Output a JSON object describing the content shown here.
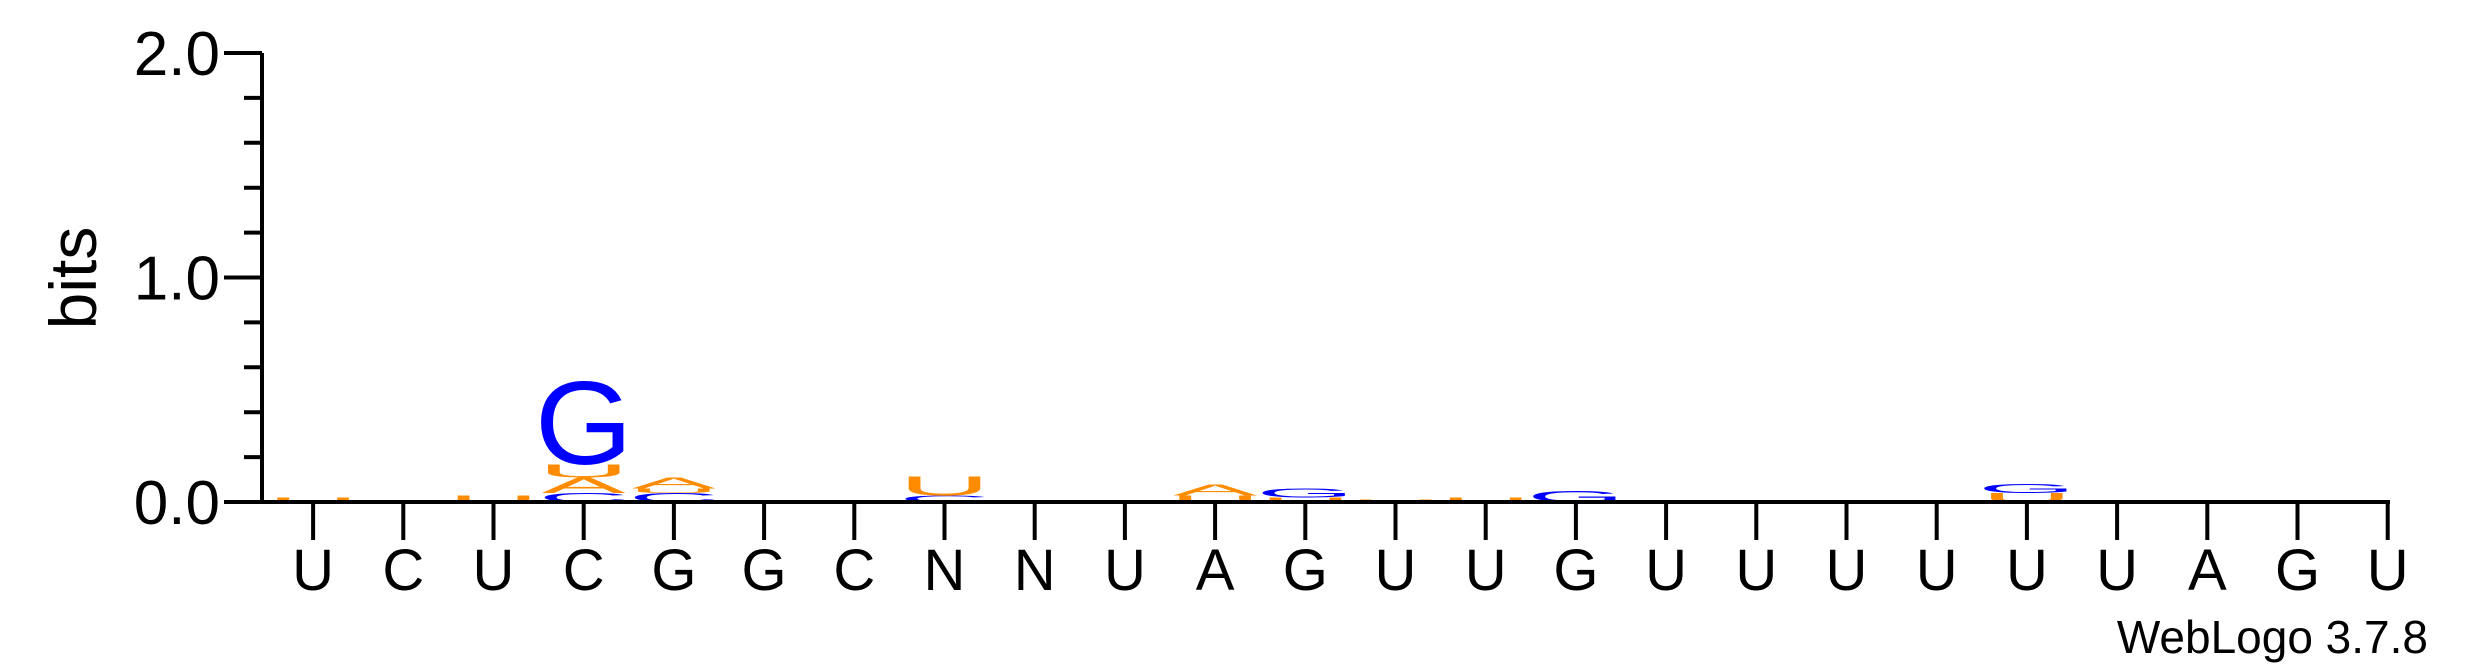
{
  "chart_data": {
    "type": "sequence-logo",
    "ylabel": "bits",
    "ylim": [
      0,
      2.0
    ],
    "yticks": [
      "0.0",
      "1.0",
      "2.0"
    ],
    "credit": "WebLogo 3.7.8",
    "colors": {
      "A": "#ff8c00",
      "U": "#ff8c00",
      "G": "#0000ff",
      "C": "#0000ff",
      "N": "#000000"
    },
    "x": [
      "U",
      "C",
      "U",
      "C",
      "G",
      "G",
      "C",
      "N",
      "N",
      "U",
      "A",
      "G",
      "U",
      "U",
      "G",
      "U",
      "U",
      "U",
      "U",
      "U",
      "U",
      "A",
      "G",
      "U"
    ],
    "columns": [
      {
        "position": 1,
        "stack": [
          {
            "letter": "U",
            "height": 0.02
          }
        ]
      },
      {
        "position": 2,
        "stack": []
      },
      {
        "position": 3,
        "stack": [
          {
            "letter": "U",
            "height": 0.03
          }
        ]
      },
      {
        "position": 4,
        "stack": [
          {
            "letter": "C",
            "height": 0.04
          },
          {
            "letter": "A",
            "height": 0.07
          },
          {
            "letter": "U",
            "height": 0.06
          },
          {
            "letter": "G",
            "height": 0.38
          }
        ]
      },
      {
        "position": 5,
        "stack": [
          {
            "letter": "C",
            "height": 0.04
          },
          {
            "letter": "U",
            "height": 0.02
          },
          {
            "letter": "A",
            "height": 0.05
          }
        ]
      },
      {
        "position": 6,
        "stack": []
      },
      {
        "position": 7,
        "stack": []
      },
      {
        "position": 8,
        "stack": [
          {
            "letter": "C",
            "height": 0.03
          },
          {
            "letter": "U",
            "height": 0.09
          }
        ]
      },
      {
        "position": 9,
        "stack": []
      },
      {
        "position": 10,
        "stack": []
      },
      {
        "position": 11,
        "stack": [
          {
            "letter": "U",
            "height": 0.03
          },
          {
            "letter": "A",
            "height": 0.05
          }
        ]
      },
      {
        "position": 12,
        "stack": [
          {
            "letter": "U",
            "height": 0.02
          },
          {
            "letter": "G",
            "height": 0.04
          }
        ]
      },
      {
        "position": 13,
        "stack": [
          {
            "letter": "U",
            "height": 0.01
          }
        ]
      },
      {
        "position": 14,
        "stack": [
          {
            "letter": "U",
            "height": 0.02
          }
        ]
      },
      {
        "position": 15,
        "stack": [
          {
            "letter": "G",
            "height": 0.05
          }
        ]
      },
      {
        "position": 16,
        "stack": []
      },
      {
        "position": 17,
        "stack": []
      },
      {
        "position": 18,
        "stack": []
      },
      {
        "position": 19,
        "stack": []
      },
      {
        "position": 20,
        "stack": [
          {
            "letter": "U",
            "height": 0.04
          },
          {
            "letter": "G",
            "height": 0.04
          }
        ]
      },
      {
        "position": 21,
        "stack": []
      },
      {
        "position": 22,
        "stack": []
      },
      {
        "position": 23,
        "stack": []
      },
      {
        "position": 24,
        "stack": []
      }
    ]
  }
}
